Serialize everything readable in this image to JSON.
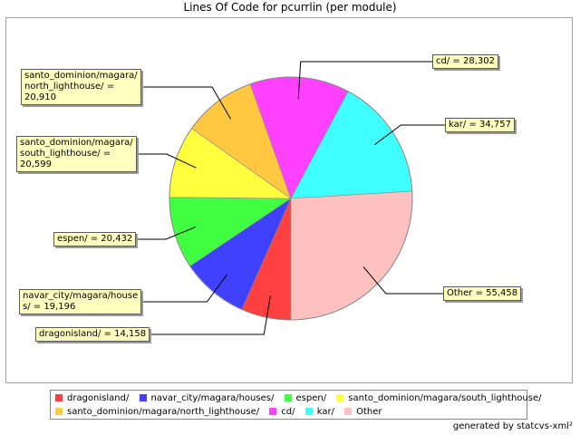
{
  "chart_data": {
    "type": "pie",
    "title": "Lines Of Code for pcurrlin (per module)",
    "slices": [
      {
        "name": "dragonisland/",
        "value": 14158,
        "label": "dragonisland/ = 14,158",
        "label_lines": [
          "dragonisland/ = 14,158"
        ],
        "color": "#ff4040"
      },
      {
        "name": "navar_city/magara/houses/",
        "value": 19196,
        "label": "navar_city/magara/houses/ = 19,196",
        "label_lines": [
          "navar_city/magara/house",
          "s/ = 19,196"
        ],
        "color": "#4040ff"
      },
      {
        "name": "espen/",
        "value": 20432,
        "label": "espen/ = 20,432",
        "label_lines": [
          "espen/ = 20,432"
        ],
        "color": "#40ff40"
      },
      {
        "name": "santo_dominion/magara/south_lighthouse/",
        "value": 20599,
        "label": "santo_dominion/magara/south_lighthouse/ = 20,599",
        "label_lines": [
          "santo_dominion/magara/",
          "south_lighthouse/ =",
          "20,599"
        ],
        "color": "#ffff40"
      },
      {
        "name": "santo_dominion/magara/north_lighthouse/",
        "value": 20910,
        "label": "santo_dominion/magara/north_lighthouse/ = 20,910",
        "label_lines": [
          "santo_dominion/magara/",
          "north_lighthouse/ =",
          "20,910"
        ],
        "color": "#ffc840"
      },
      {
        "name": "cd/",
        "value": 28302,
        "label": "cd/ = 28,302",
        "label_lines": [
          "cd/ = 28,302"
        ],
        "color": "#ff40ff"
      },
      {
        "name": "kar/",
        "value": 34757,
        "label": "kar/ = 34,757",
        "label_lines": [
          "kar/ = 34,757"
        ],
        "color": "#40ffff"
      },
      {
        "name": "Other",
        "value": 55458,
        "label": "Other = 55,458",
        "label_lines": [
          "Other = 55,458"
        ],
        "color": "#ffc0c0"
      }
    ],
    "legend_placement": "bottom"
  },
  "footer": "generated by statcvs-xml²"
}
